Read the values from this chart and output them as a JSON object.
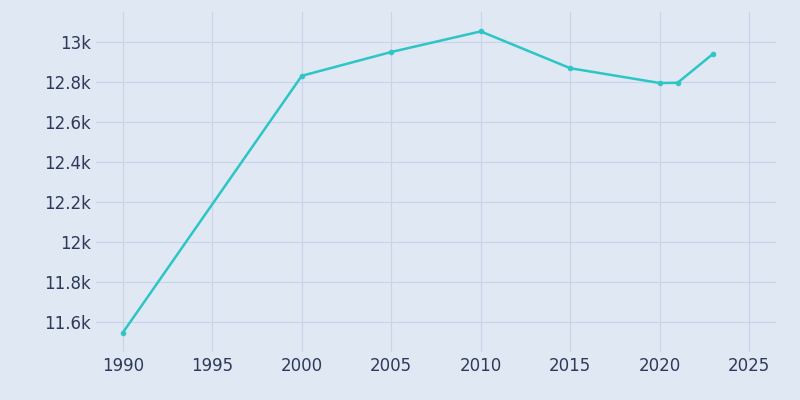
{
  "years": [
    1990,
    2000,
    2005,
    2010,
    2015,
    2020,
    2021,
    2023
  ],
  "population": [
    11547,
    12831,
    12950,
    13053,
    12869,
    12795,
    12796,
    12942
  ],
  "line_color": "#2dc5c5",
  "background_color": "#dfe8f3",
  "grid_color": "#c8d4e8",
  "tick_label_color": "#2e3a59",
  "xlim": [
    1988.5,
    2026.5
  ],
  "ylim": [
    11450,
    13150
  ],
  "xticks": [
    1990,
    1995,
    2000,
    2005,
    2010,
    2015,
    2020,
    2025
  ],
  "yticks": [
    11600,
    11800,
    12000,
    12200,
    12400,
    12600,
    12800,
    13000
  ],
  "figsize": [
    8.0,
    4.0
  ],
  "dpi": 100,
  "tick_fontsize": 12
}
